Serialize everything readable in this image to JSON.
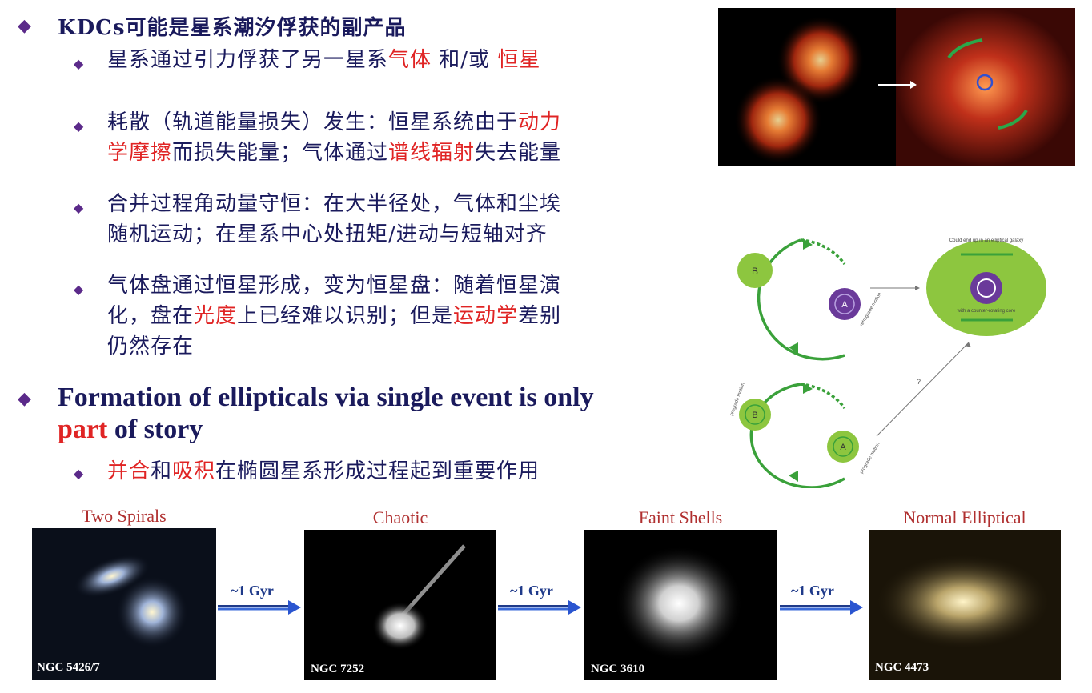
{
  "section1": {
    "title": "KDCs可能是星系潮汐俘获的副产品",
    "items": [
      {
        "lines": [
          [
            {
              "t": "星系通过引力俘获了另一星系",
              "c": "n"
            },
            {
              "t": "气体",
              "c": "r"
            },
            {
              "t": " 和/或 ",
              "c": "n"
            },
            {
              "t": "恒星",
              "c": "r"
            }
          ]
        ]
      },
      {
        "lines": [
          [
            {
              "t": "耗散（轨道能量损失）发生：恒星系统由于",
              "c": "n"
            },
            {
              "t": "动力",
              "c": "r"
            }
          ],
          [
            {
              "t": "学摩擦",
              "c": "r"
            },
            {
              "t": "而损失能量；气体通过",
              "c": "n"
            },
            {
              "t": "谱线辐射",
              "c": "r"
            },
            {
              "t": "失去能量",
              "c": "n"
            }
          ]
        ]
      },
      {
        "lines": [
          [
            {
              "t": "合并过程角动量守恒：在大半径处，气体和尘埃",
              "c": "n"
            }
          ],
          [
            {
              "t": "随机运动；在星系中心处扭矩/进动与短轴对齐",
              "c": "n"
            }
          ]
        ]
      },
      {
        "lines": [
          [
            {
              "t": "气体盘通过恒星形成，变为恒星盘：随着恒星演",
              "c": "n"
            }
          ],
          [
            {
              "t": "化，盘在",
              "c": "n"
            },
            {
              "t": "光度",
              "c": "r"
            },
            {
              "t": "上已经难以识别；但是",
              "c": "n"
            },
            {
              "t": "运动学",
              "c": "r"
            },
            {
              "t": "差别",
              "c": "n"
            }
          ],
          [
            {
              "t": "仍然存在",
              "c": "n"
            }
          ]
        ]
      }
    ]
  },
  "section2": {
    "title_line1": "Formation of ellipticals via single event is only",
    "title_line2_red": "part",
    "title_line2_rest": " of story",
    "item": [
      {
        "t": "并合",
        "c": "r"
      },
      {
        "t": "和",
        "c": "n"
      },
      {
        "t": "吸积",
        "c": "r"
      },
      {
        "t": "在椭圆星系形成过程起到重要作用",
        "c": "n"
      }
    ]
  },
  "diagram": {
    "top_label_b": "B",
    "top_label_a": "A",
    "top_motion": "retrograde motion",
    "result_top": "Could end up in an elliptical galaxy",
    "result_bottom": "with a counter-rotating core",
    "bottom_label_b": "B",
    "bottom_label_a": "A",
    "bottom_motion_1": "prograde motion",
    "bottom_motion_2": "prograde motion",
    "question": "?"
  },
  "sequence": [
    {
      "title": "Two Spirals",
      "caption": "NGC 5426/7"
    },
    {
      "title": "Chaotic",
      "caption": "NGC 7252"
    },
    {
      "title": "Faint Shells",
      "caption": "NGC 3610"
    },
    {
      "title": "Normal Elliptical",
      "caption": "NGC 4473"
    }
  ],
  "arrows": [
    "~1 Gyr",
    "~1 Gyr",
    "~1 Gyr"
  ],
  "colors": {
    "navy": "#1a1a5c",
    "red": "#e02424",
    "bullet": "#5b2a8a",
    "green": "#3aa13a",
    "lime": "#8dc63f",
    "purple": "#6a3a9a"
  }
}
